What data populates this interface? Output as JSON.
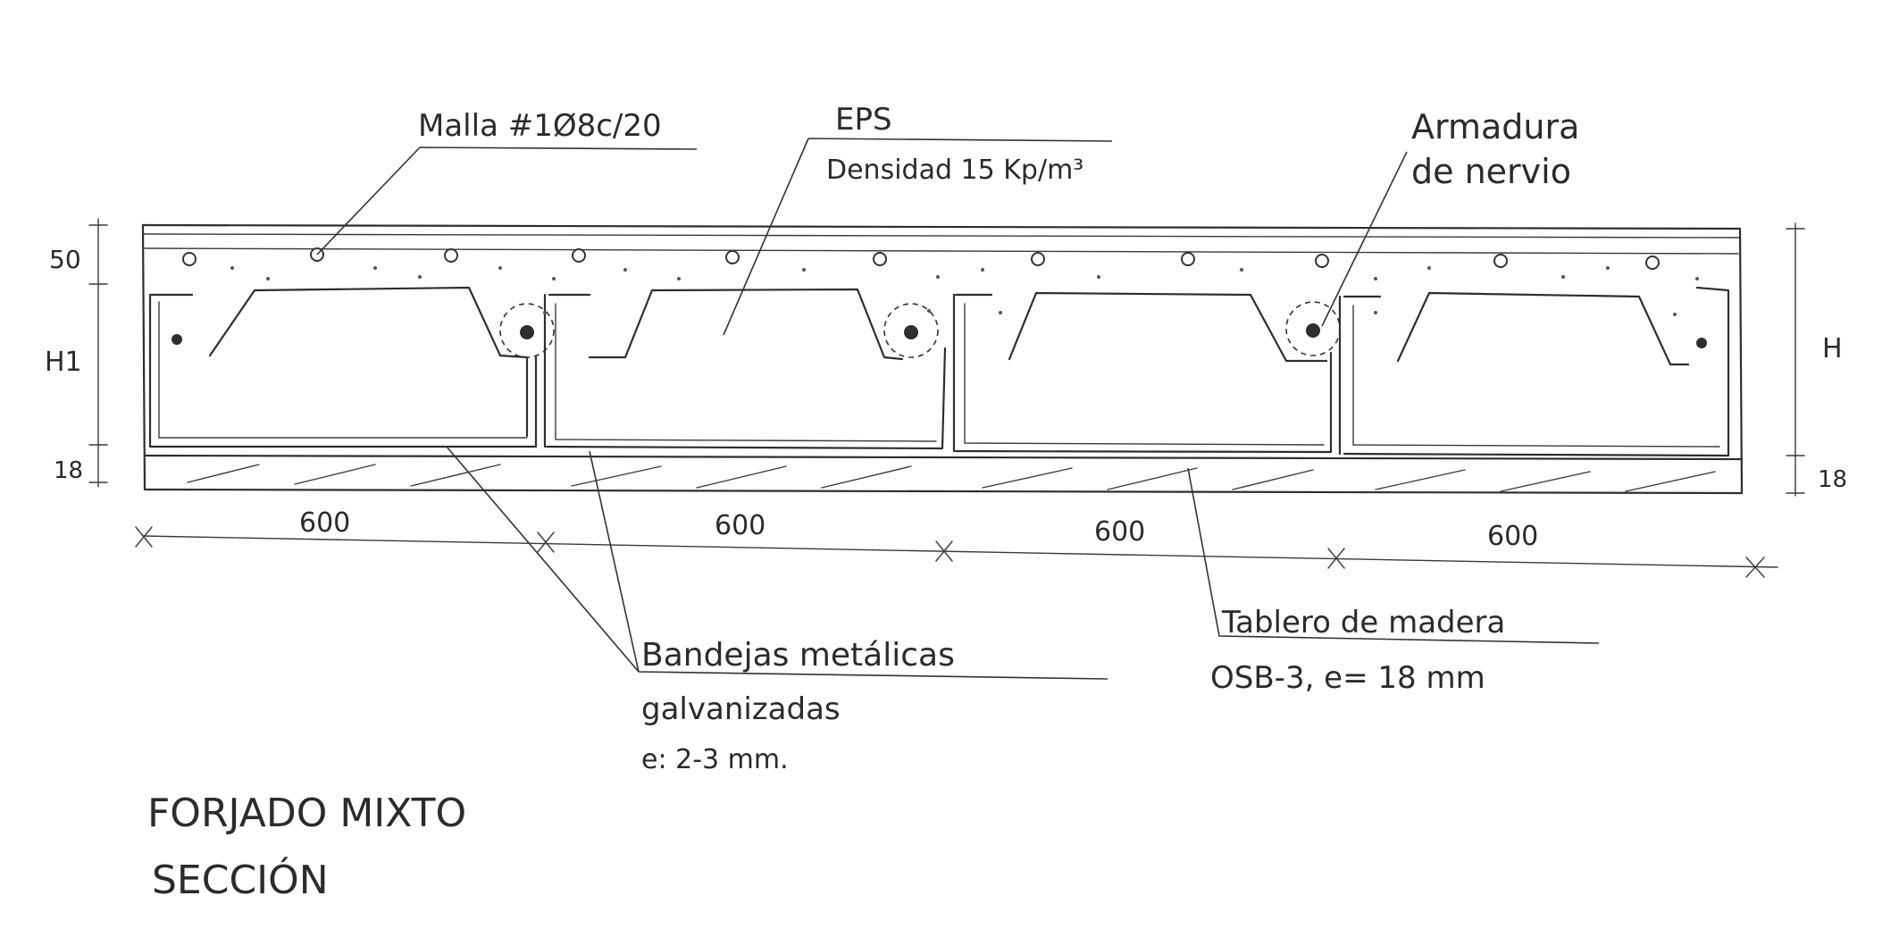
{
  "labels": {
    "malla": "Malla #1Ø8c/20",
    "eps": "EPS",
    "eps_density": "Densidad 15 Kp/m³",
    "armadura_1": "Armadura",
    "armadura_2": "de nervio",
    "bandejas_1": "Bandejas metálicas",
    "bandejas_2": "galvanizadas",
    "bandejas_3": "e: 2-3 mm.",
    "tablero_1": "Tablero de madera",
    "tablero_2": "OSB-3,  e= 18 mm",
    "title_1": "FORJADO MIXTO",
    "title_2": "SECCIÓN"
  },
  "dimensions": {
    "slab_top": "50",
    "h1": "H1",
    "board_left": "18",
    "h": "H",
    "board_right": "18",
    "spans": [
      "600",
      "600",
      "600",
      "600"
    ]
  },
  "colors": {
    "ink": "#2e2e2e",
    "paper": "#ffffff",
    "wood_hatch": "#555555"
  }
}
